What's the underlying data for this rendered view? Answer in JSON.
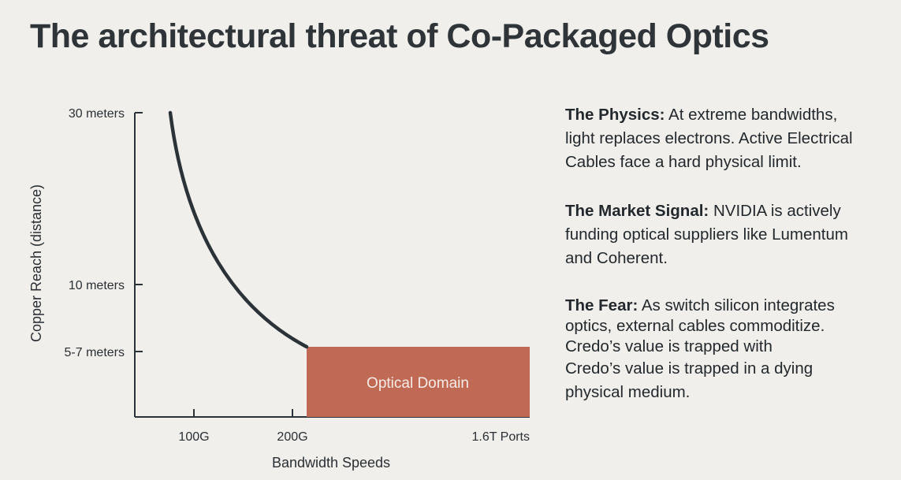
{
  "title": "The architectural threat of Co-Packaged Optics",
  "chart_data": {
    "type": "line",
    "title": "",
    "xlabel": "Bandwidth Speeds",
    "ylabel": "Copper Reach (distance)",
    "x_ticks": [
      "100G",
      "200G",
      "1.6T Ports"
    ],
    "y_ticks": [
      "30 meters",
      "10 meters",
      "5-7 meters"
    ],
    "series": [
      {
        "name": "Copper reach",
        "note": "steeply decaying curve from ~30 m down to ~5-7 m"
      }
    ],
    "region": {
      "label": "Optical Domain",
      "color": "#c06a55"
    },
    "colors": {
      "curve": "#2c3338",
      "axis": "#2c3338",
      "text": "#2a2f33"
    }
  },
  "notes": [
    {
      "heading": "The Physics:",
      "lines": [
        "At extreme bandwidths,",
        "light replaces electrons. Active Electrical",
        "Cables face a hard physical limit."
      ]
    },
    {
      "heading": "The Market Signal:",
      "lines": [
        "NVIDIA is actively",
        "funding optical suppliers like Lumentum",
        "and Coherent."
      ]
    },
    {
      "heading": "The Fear:",
      "lines": [
        "As switch silicon integrates",
        "optics, external cables commoditize.",
        "Credo’s value is trapped with",
        "Credo’s value is trapped in a dying",
        "physical medium."
      ]
    }
  ]
}
